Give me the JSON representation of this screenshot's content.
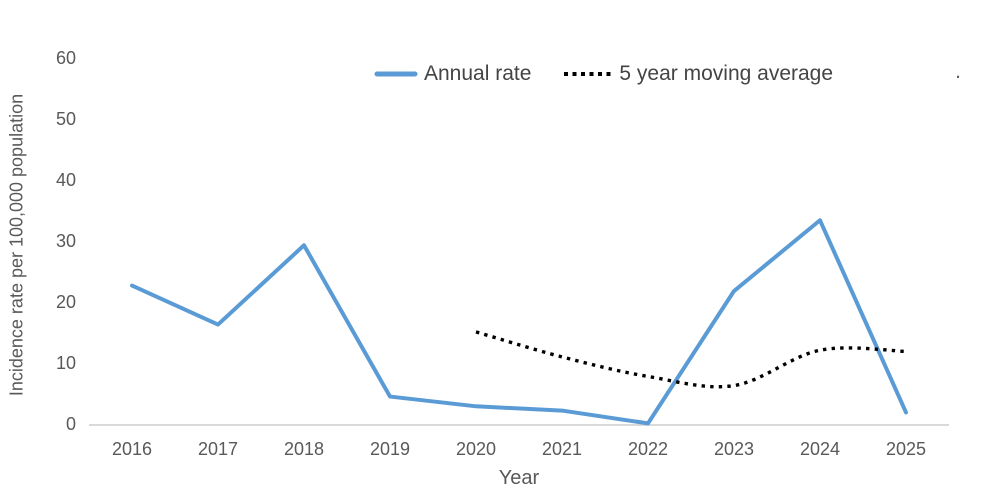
{
  "chart_data": {
    "type": "line",
    "title": "",
    "xlabel": "Year",
    "ylabel": "Incidence rate per 100,000 population",
    "categories": [
      "2016",
      "2017",
      "2018",
      "2019",
      "2020",
      "2021",
      "2022",
      "2023",
      "2024",
      "2025"
    ],
    "y_ticks": [
      "0",
      "10",
      "20",
      "30",
      "40",
      "50",
      "60"
    ],
    "ylim": [
      0,
      60
    ],
    "grid": false,
    "legend_position": "top-center",
    "series": [
      {
        "name": "Annual rate",
        "color": "#5B9BD5",
        "style": "solid",
        "smooth": false,
        "values": [
          22.7,
          16.3,
          29.3,
          4.5,
          2.9,
          2.2,
          0.1,
          21.8,
          33.4,
          1.9
        ]
      },
      {
        "name": "5 year moving average",
        "color": "#000000",
        "style": "dotted",
        "smooth": true,
        "values": [
          null,
          null,
          null,
          null,
          15.1,
          11.0,
          7.8,
          6.3,
          12.1,
          11.9
        ]
      }
    ]
  },
  "legend": {
    "stray_text": "."
  },
  "colors": {
    "axis_line": "#D9D9D9",
    "tick_text": "#595959",
    "legend_text": "#444444"
  }
}
